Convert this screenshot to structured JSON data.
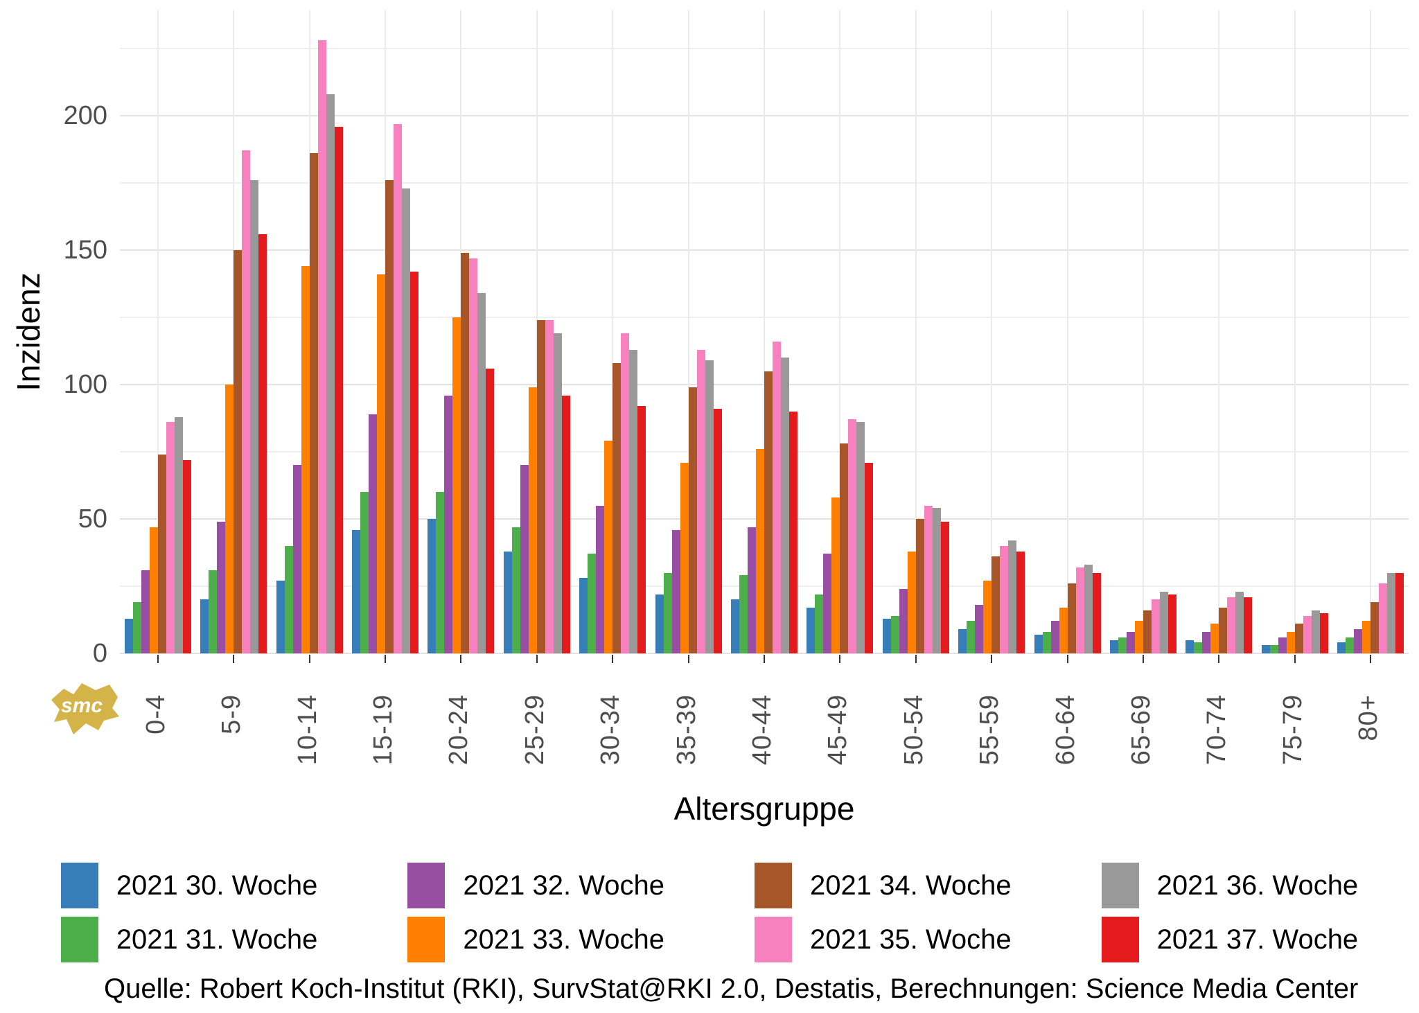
{
  "chart_data": {
    "type": "bar",
    "title": "",
    "xlabel": "Altersgruppe",
    "ylabel": "Inzidenz",
    "ylim": [
      0,
      239
    ],
    "yticks": [
      0,
      50,
      100,
      150,
      200
    ],
    "minor_gridlines": [
      25,
      75,
      125,
      175,
      225
    ],
    "grid": "on",
    "legend_position": "bottom",
    "categories": [
      "0-4",
      "5-9",
      "10-14",
      "15-19",
      "20-24",
      "25-29",
      "30-34",
      "35-39",
      "40-44",
      "45-49",
      "50-54",
      "55-59",
      "60-64",
      "65-69",
      "70-74",
      "75-79",
      "80+"
    ],
    "series": [
      {
        "name": "2021 30. Woche",
        "color": "#377eb8",
        "values": [
          13,
          20,
          27,
          46,
          50,
          38,
          28,
          22,
          20,
          17,
          13,
          9,
          7,
          5,
          5,
          3,
          4
        ]
      },
      {
        "name": "2021 31. Woche",
        "color": "#4daf4a",
        "values": [
          19,
          31,
          40,
          60,
          60,
          47,
          37,
          30,
          29,
          22,
          14,
          12,
          8,
          6,
          4,
          3,
          6
        ]
      },
      {
        "name": "2021 32. Woche",
        "color": "#984ea3",
        "values": [
          31,
          49,
          70,
          89,
          96,
          70,
          55,
          46,
          47,
          37,
          24,
          18,
          12,
          8,
          8,
          6,
          9
        ]
      },
      {
        "name": "2021 33. Woche",
        "color": "#ff7f00",
        "values": [
          47,
          100,
          144,
          141,
          125,
          99,
          79,
          71,
          76,
          58,
          38,
          27,
          17,
          12,
          11,
          8,
          12
        ]
      },
      {
        "name": "2021 34. Woche",
        "color": "#a65628",
        "values": [
          74,
          150,
          186,
          176,
          149,
          124,
          108,
          99,
          105,
          78,
          50,
          36,
          26,
          16,
          17,
          11,
          19
        ]
      },
      {
        "name": "2021 35. Woche",
        "color": "#f781bf",
        "values": [
          86,
          187,
          228,
          197,
          147,
          124,
          119,
          113,
          116,
          87,
          55,
          40,
          32,
          20,
          21,
          14,
          26
        ]
      },
      {
        "name": "2021 36. Woche",
        "color": "#999999",
        "values": [
          88,
          176,
          208,
          173,
          134,
          119,
          113,
          109,
          110,
          86,
          54,
          42,
          33,
          23,
          23,
          16,
          30
        ]
      },
      {
        "name": "2021 37. Woche",
        "color": "#e41a1c",
        "values": [
          72,
          156,
          196,
          142,
          106,
          96,
          92,
          91,
          90,
          71,
          49,
          38,
          30,
          22,
          21,
          15,
          30
        ]
      }
    ]
  },
  "footer": {
    "source": "Quelle: Robert Koch-Institut (RKI), SurvStat@RKI 2.0, Destatis, Berechnungen: Science Media Center"
  },
  "logo": {
    "text": "smc",
    "color": "#d4b448"
  }
}
